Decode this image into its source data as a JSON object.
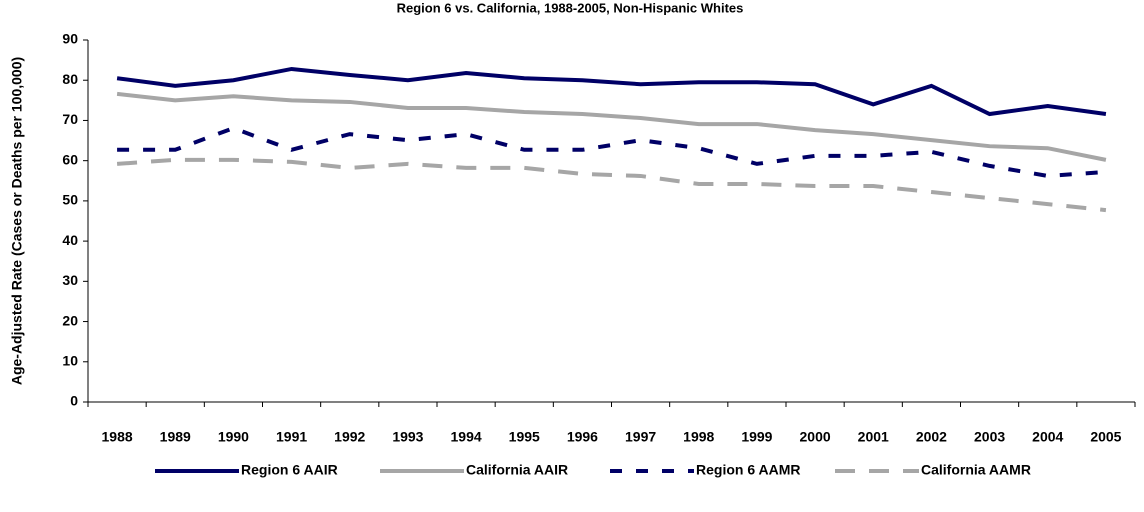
{
  "chart_data": {
    "type": "line",
    "title": "Region 6 vs. California, 1988-2005, Non-Hispanic Whites",
    "y_label": "Age-Adjusted Rate (Cases or Deaths per 100,000)",
    "categories": [
      "1988",
      "1989",
      "1990",
      "1991",
      "1992",
      "1993",
      "1994",
      "1995",
      "1996",
      "1997",
      "1998",
      "1999",
      "2000",
      "2001",
      "2002",
      "2003",
      "2004",
      "2005"
    ],
    "ylim": [
      0,
      90
    ],
    "yticks": [
      0,
      10,
      20,
      30,
      40,
      50,
      60,
      70,
      80,
      90
    ],
    "legend": "bottom",
    "series": [
      {
        "name": "Region 6 AAIR",
        "color": "#000066",
        "style": "solid",
        "values": [
          80.5,
          78.6,
          80.0,
          82.8,
          81.3,
          80.0,
          81.8,
          80.5,
          80.0,
          79.0,
          79.5,
          79.5,
          79.0,
          74.0,
          78.6,
          71.6,
          73.6,
          71.6
        ]
      },
      {
        "name": "California AAIR",
        "color": "#a6a6a6",
        "style": "solid",
        "values": [
          76.6,
          75.0,
          76.0,
          75.0,
          74.6,
          73.1,
          73.1,
          72.1,
          71.6,
          70.6,
          69.1,
          69.1,
          67.6,
          66.6,
          65.1,
          63.6,
          63.1,
          60.2
        ]
      },
      {
        "name": "Region 6 AAMR",
        "color": "#000066",
        "style": "dash",
        "values": [
          62.7,
          62.7,
          68.1,
          62.7,
          66.6,
          65.1,
          66.6,
          62.7,
          62.7,
          65.1,
          63.1,
          59.2,
          61.2,
          61.2,
          62.2,
          58.7,
          56.2,
          57.2
        ]
      },
      {
        "name": "California AAMR",
        "color": "#a6a6a6",
        "style": "longdash",
        "values": [
          59.2,
          60.2,
          60.2,
          59.7,
          58.2,
          59.2,
          58.2,
          58.2,
          56.7,
          56.2,
          54.2,
          54.2,
          53.7,
          53.7,
          52.2,
          50.7,
          49.2,
          47.7
        ]
      }
    ]
  }
}
